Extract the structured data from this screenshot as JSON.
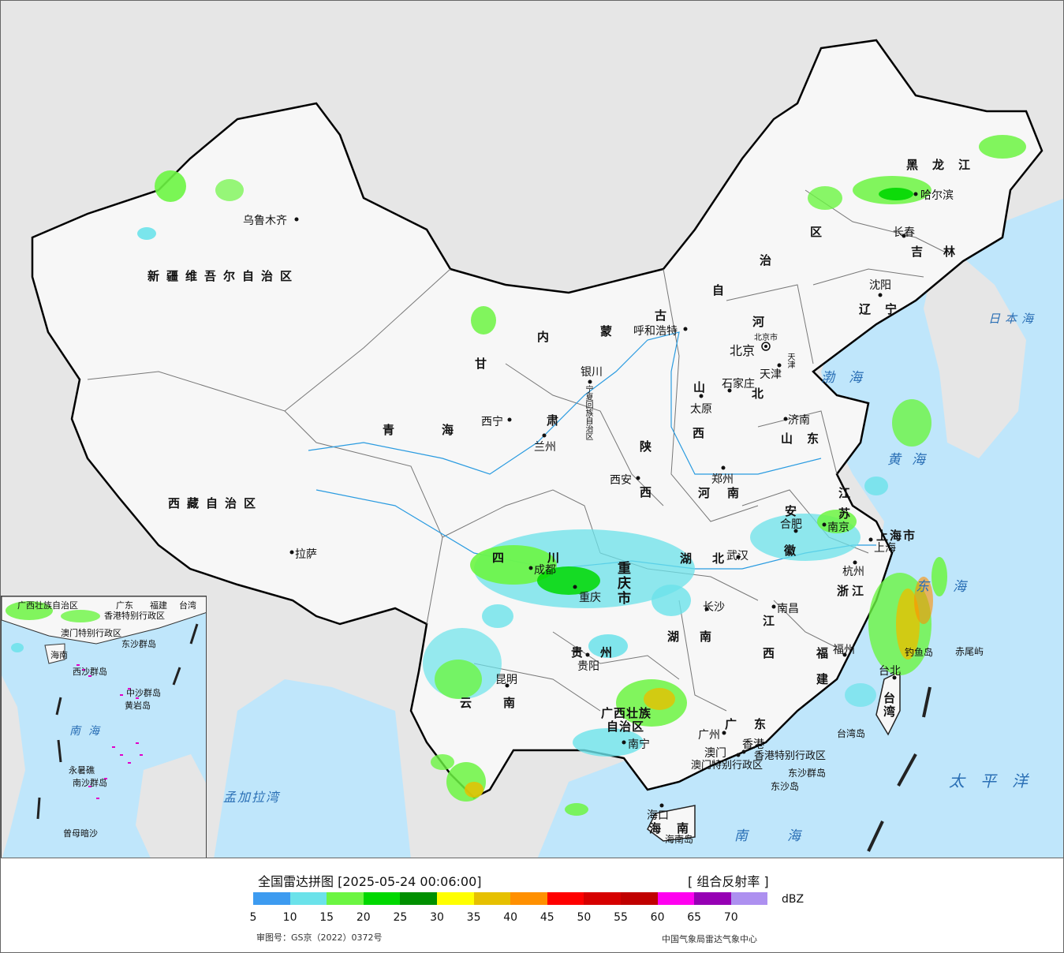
{
  "map": {
    "regions": [
      {
        "key": "xinjiang",
        "label": "新疆维吾尔自治区"
      },
      {
        "key": "xizang",
        "label": "西藏自治区"
      },
      {
        "key": "qinghai",
        "label": "青海"
      },
      {
        "key": "gansu_a",
        "label": "甘"
      },
      {
        "key": "gansu_b",
        "label": "肃"
      },
      {
        "key": "nmg_a",
        "label": "内"
      },
      {
        "key": "nmg_b",
        "label": "蒙"
      },
      {
        "key": "nmg_c",
        "label": "古"
      },
      {
        "key": "nmg_d",
        "label": "自"
      },
      {
        "key": "nmg_e",
        "label": "治"
      },
      {
        "key": "nmg_f",
        "label": "区"
      },
      {
        "key": "heilongjiang",
        "label": "黑龙江"
      },
      {
        "key": "jilin",
        "label": "吉林"
      },
      {
        "key": "liaoning",
        "label": "辽宁"
      },
      {
        "key": "hebei_a",
        "label": "河"
      },
      {
        "key": "hebei_b",
        "label": "北"
      },
      {
        "key": "shanxi_a",
        "label": "山"
      },
      {
        "key": "shanxi_b",
        "label": "西"
      },
      {
        "key": "shandong",
        "label": "山东"
      },
      {
        "key": "henan",
        "label": "河南"
      },
      {
        "key": "shaanxi_a",
        "label": "陕"
      },
      {
        "key": "shaanxi_b",
        "label": "西"
      },
      {
        "key": "sichuan",
        "label": "四川"
      },
      {
        "key": "chongqing",
        "label": "重庆市"
      },
      {
        "key": "hubei",
        "label": "湖北"
      },
      {
        "key": "hunan",
        "label": "湖南"
      },
      {
        "key": "anhui_a",
        "label": "安"
      },
      {
        "key": "anhui_b",
        "label": "徽"
      },
      {
        "key": "jiangsu_a",
        "label": "江"
      },
      {
        "key": "jiangsu_b",
        "label": "苏"
      },
      {
        "key": "shanghai",
        "label": "上海市"
      },
      {
        "key": "zhejiang",
        "label": "浙江"
      },
      {
        "key": "jiangxi_a",
        "label": "江"
      },
      {
        "key": "jiangxi_b",
        "label": "西"
      },
      {
        "key": "fujian_a",
        "label": "福"
      },
      {
        "key": "fujian_b",
        "label": "建"
      },
      {
        "key": "guizhou",
        "label": "贵州"
      },
      {
        "key": "yunnan",
        "label": "云南"
      },
      {
        "key": "guangxi_a",
        "label": "广西壮族"
      },
      {
        "key": "guangxi_b",
        "label": "自治区"
      },
      {
        "key": "guangdong",
        "label": "广东"
      },
      {
        "key": "hainan",
        "label": "海南"
      },
      {
        "key": "taiwan",
        "label": "台湾"
      },
      {
        "key": "ningxia",
        "label": "宁夏回族自治区"
      },
      {
        "key": "hk",
        "label": "香港特别行政区"
      },
      {
        "key": "macau",
        "label": "澳门特别行政区"
      }
    ],
    "cities": [
      {
        "key": "urumqi",
        "label": "乌鲁木齐"
      },
      {
        "key": "lhasa",
        "label": "拉萨"
      },
      {
        "key": "xining",
        "label": "西宁"
      },
      {
        "key": "lanzhou",
        "label": "兰州"
      },
      {
        "key": "yinchuan",
        "label": "银川"
      },
      {
        "key": "hohhot",
        "label": "呼和浩特"
      },
      {
        "key": "beijing",
        "label": "北京"
      },
      {
        "key": "beijingshi",
        "label": "北京市"
      },
      {
        "key": "tianjin",
        "label": "天津"
      },
      {
        "key": "tianjinshi",
        "label": "天津"
      },
      {
        "key": "shijiazhuang",
        "label": "石家庄"
      },
      {
        "key": "taiyuan",
        "label": "太原"
      },
      {
        "key": "jinan",
        "label": "济南"
      },
      {
        "key": "zhengzhou",
        "label": "郑州"
      },
      {
        "key": "xian",
        "label": "西安"
      },
      {
        "key": "chengdu",
        "label": "成都"
      },
      {
        "key": "chongqing_c",
        "label": "重庆"
      },
      {
        "key": "wuhan",
        "label": "武汉"
      },
      {
        "key": "changsha",
        "label": "长沙"
      },
      {
        "key": "hefei",
        "label": "合肥"
      },
      {
        "key": "nanjing",
        "label": "南京"
      },
      {
        "key": "shanghai_c",
        "label": "上海"
      },
      {
        "key": "hangzhou",
        "label": "杭州"
      },
      {
        "key": "nanchang",
        "label": "南昌"
      },
      {
        "key": "fuzhou",
        "label": "福州"
      },
      {
        "key": "guiyang",
        "label": "贵阳"
      },
      {
        "key": "kunming",
        "label": "昆明"
      },
      {
        "key": "nanning",
        "label": "南宁"
      },
      {
        "key": "guangzhou",
        "label": "广州"
      },
      {
        "key": "hongkong",
        "label": "香港"
      },
      {
        "key": "macao",
        "label": "澳门"
      },
      {
        "key": "haikou",
        "label": "海口"
      },
      {
        "key": "taipei",
        "label": "台北"
      },
      {
        "key": "harbin",
        "label": "哈尔滨"
      },
      {
        "key": "changchun",
        "label": "长春"
      },
      {
        "key": "shenyang",
        "label": "沈阳"
      }
    ],
    "seas": [
      {
        "key": "japan_sea",
        "label": "日本海"
      },
      {
        "key": "bohai",
        "label": "渤海"
      },
      {
        "key": "yellow_sea",
        "label": "黄海"
      },
      {
        "key": "east_sea",
        "label": "东海"
      },
      {
        "key": "pacific",
        "label": "太平洋"
      },
      {
        "key": "south_sea",
        "label": "南海"
      },
      {
        "key": "bengal",
        "label": "孟加拉湾"
      }
    ],
    "islands": [
      {
        "key": "diaoyu",
        "label": "钓鱼岛"
      },
      {
        "key": "chiwei",
        "label": "赤尾屿"
      },
      {
        "key": "taiwan_isl",
        "label": "台湾岛"
      },
      {
        "key": "dongsha_qd",
        "label": "东沙群岛"
      },
      {
        "key": "dongsha_d",
        "label": "东沙岛"
      },
      {
        "key": "hainan_isl",
        "label": "海南岛"
      }
    ],
    "inset": {
      "labels": [
        {
          "key": "i_gx",
          "label": "广西壮族自治区"
        },
        {
          "key": "i_gd",
          "label": "广东"
        },
        {
          "key": "i_fj",
          "label": "福建"
        },
        {
          "key": "i_tw",
          "label": "台湾"
        },
        {
          "key": "i_hk",
          "label": "香港特别行政区"
        },
        {
          "key": "i_mo",
          "label": "澳门特别行政区"
        },
        {
          "key": "i_ds",
          "label": "东沙群岛"
        },
        {
          "key": "i_hn",
          "label": "海南"
        },
        {
          "key": "i_xs",
          "label": "西沙群岛"
        },
        {
          "key": "i_zs",
          "label": "中沙群岛"
        },
        {
          "key": "i_hy",
          "label": "黄岩岛"
        },
        {
          "key": "i_nsqd",
          "label": "南沙群岛"
        },
        {
          "key": "i_zm",
          "label": "曾母暗沙"
        },
        {
          "key": "i_yongshu",
          "label": "永暑礁"
        }
      ],
      "sea_label": "南海"
    }
  },
  "legend": {
    "title": "全国雷达拼图 [2025-05-24 00:06:00]",
    "product": "[ 组合反射率 ]",
    "unit": "dBZ",
    "ticks": [
      "5",
      "10",
      "15",
      "20",
      "25",
      "30",
      "35",
      "40",
      "45",
      "50",
      "55",
      "60",
      "65",
      "70"
    ],
    "colors": [
      "#3d9bf0",
      "#6be2ea",
      "#6cf542",
      "#00d800",
      "#008f00",
      "#ffff00",
      "#e6c000",
      "#ff9000",
      "#ff0000",
      "#d60000",
      "#c00000",
      "#ff00f0",
      "#9600b4",
      "#ad90f0"
    ],
    "approval": "审图号：GS京（2022）0372号",
    "source": "中国气象局雷达气象中心"
  }
}
